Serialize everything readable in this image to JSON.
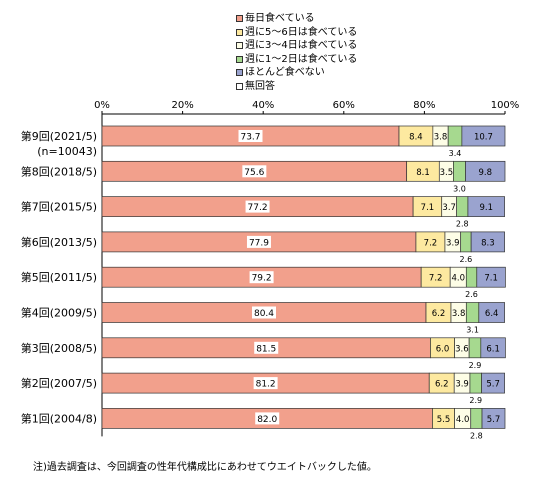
{
  "chart_data": {
    "type": "bar",
    "orientation": "horizontal",
    "stacked": true,
    "percent_axis": true,
    "xlim": [
      0,
      100
    ],
    "x_ticks": [
      "0%",
      "20%",
      "40%",
      "60%",
      "80%",
      "100%"
    ],
    "categories": [
      "第9回(2021/5)",
      "第8回(2018/5)",
      "第7回(2015/5)",
      "第6回(2013/5)",
      "第5回(2011/5)",
      "第4回(2009/5)",
      "第3回(2008/5)",
      "第2回(2007/5)",
      "第1回(2004/8)"
    ],
    "category_sublabels": [
      "(n=10043)",
      "",
      "",
      "",
      "",
      "",
      "",
      "",
      ""
    ],
    "series": [
      {
        "name": "毎日食べている",
        "color": "#f2a08c",
        "values": [
          73.7,
          75.6,
          77.2,
          77.9,
          79.2,
          80.4,
          81.5,
          81.2,
          82.0
        ]
      },
      {
        "name": "週に5～6日は食べている",
        "color": "#fde9a0",
        "values": [
          8.4,
          8.1,
          7.1,
          7.2,
          7.2,
          6.2,
          6.0,
          6.2,
          5.5
        ]
      },
      {
        "name": "週に3～4日は食べている",
        "color": "#fdfde6",
        "values": [
          3.8,
          3.5,
          3.7,
          3.9,
          4.0,
          3.8,
          3.6,
          3.9,
          4.0
        ]
      },
      {
        "name": "週に1～2日は食べている",
        "color": "#a6d98f",
        "values": [
          3.4,
          3.0,
          2.8,
          2.6,
          2.6,
          3.1,
          2.9,
          2.9,
          2.8
        ]
      },
      {
        "name": "ほとんど食べない",
        "color": "#9aa3cf",
        "values": [
          10.7,
          9.8,
          9.1,
          8.3,
          7.1,
          6.4,
          6.1,
          5.7,
          5.7
        ]
      },
      {
        "name": "無回答",
        "color": "#ffffff",
        "values": [
          0,
          0,
          0,
          0,
          0,
          0,
          0,
          0,
          0
        ]
      }
    ],
    "label_formats": [
      "73.7",
      "75.6",
      "77.2",
      "77.9",
      "79.2",
      "80.4",
      "81.5",
      "81.2",
      "82.0"
    ],
    "grid": false,
    "legend_position": "top"
  },
  "note": "注)過去調査は、今回調査の性年代構成比にあわせてウエイトバックした値。"
}
